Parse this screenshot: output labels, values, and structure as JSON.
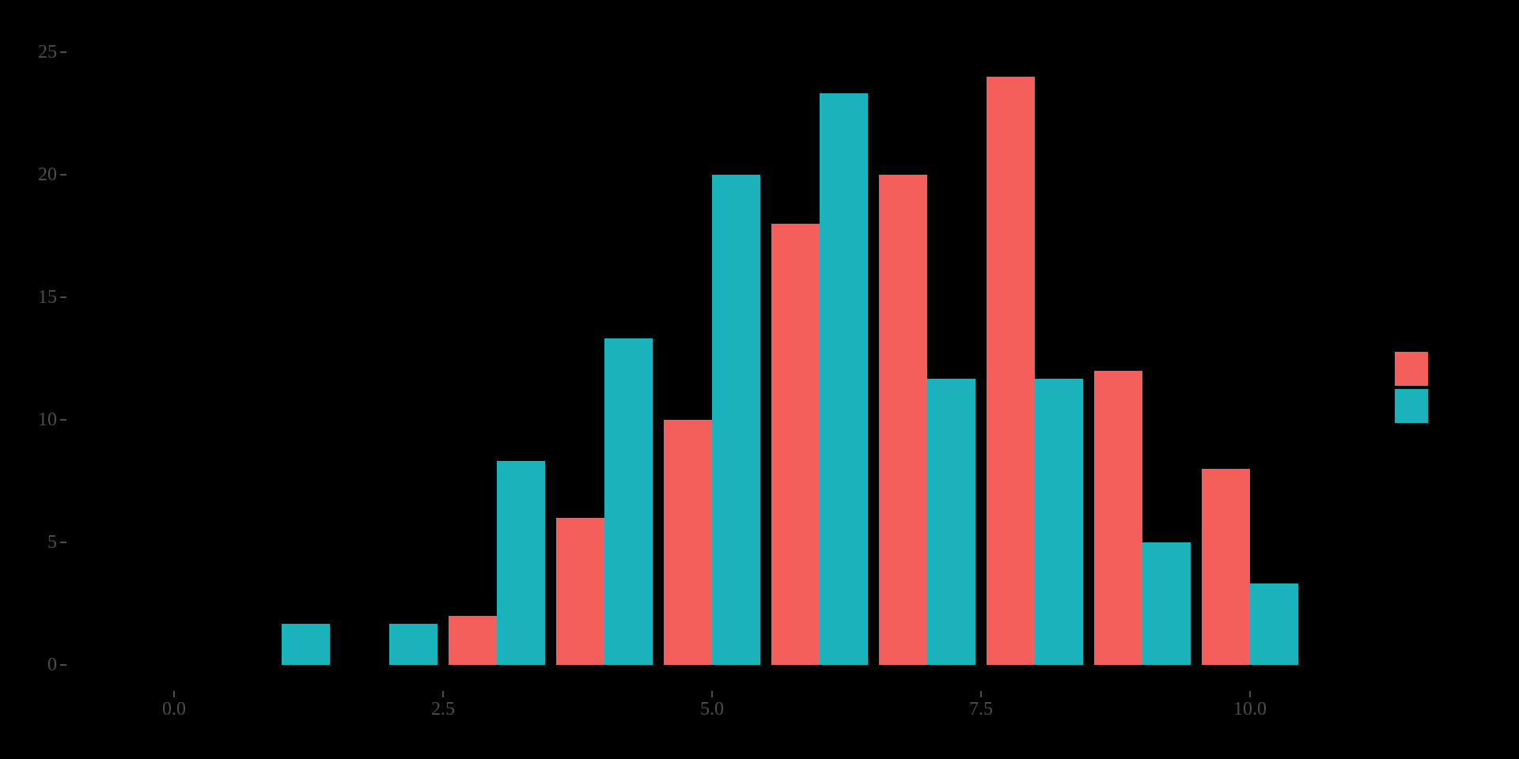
{
  "chart_data": {
    "type": "bar",
    "subtype": "dodged-histogram",
    "title": "",
    "xlabel": "",
    "ylabel": "",
    "grid": false,
    "legend_position": "right-center",
    "x_ticks": [
      {
        "label": "0.0",
        "value": 0
      },
      {
        "label": "2.5",
        "value": 2.5
      },
      {
        "label": "5.0",
        "value": 5
      },
      {
        "label": "7.5",
        "value": 7.5
      },
      {
        "label": "10.0",
        "value": 10
      }
    ],
    "y_ticks": [
      {
        "label": "0",
        "value": 0
      },
      {
        "label": "5",
        "value": 5
      },
      {
        "label": "10",
        "value": 10
      },
      {
        "label": "15",
        "value": 15
      },
      {
        "label": "20",
        "value": 20
      },
      {
        "label": "25",
        "value": 25
      }
    ],
    "xlim": [
      -1.0,
      11.5
    ],
    "ylim": [
      0,
      25
    ],
    "bin_centers": [
      1,
      2,
      3,
      4,
      5,
      6,
      7,
      8,
      9,
      10
    ],
    "bar_width_units": 0.45,
    "series": [
      {
        "name": "red",
        "color": "#F45F5B",
        "values": [
          0,
          0,
          2,
          6,
          10,
          18,
          20,
          24,
          12,
          8
        ]
      },
      {
        "name": "teal",
        "color": "#1BB3BB",
        "values": [
          1.67,
          1.67,
          8.33,
          13.33,
          20,
          23.33,
          11.67,
          11.67,
          5,
          3.33
        ]
      }
    ],
    "colors": {
      "background": "#000000",
      "axis_text": "#4d4d4d",
      "tick_mark": "#4d4d4d"
    }
  }
}
